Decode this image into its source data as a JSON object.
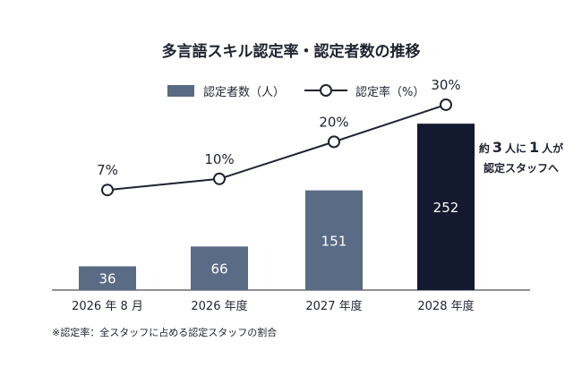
{
  "chart_data": {
    "type": "bar+line",
    "title": "多言語スキル認定率・認定者数の推移",
    "categories": [
      "2026 年 8 月",
      "2026 年度",
      "2027 年度",
      "2028 年度"
    ],
    "series": [
      {
        "name": "認定者数（人）",
        "type": "bar",
        "values": [
          36,
          66,
          151,
          252
        ],
        "colors": [
          "#5a6b85",
          "#5a6b85",
          "#5a6b85",
          "#13192e"
        ]
      },
      {
        "name": "認定率（%）",
        "type": "line",
        "values": [
          7,
          10,
          20,
          30
        ],
        "labels": [
          "7%",
          "10%",
          "20%",
          "30%"
        ],
        "color": "#1f2330"
      }
    ],
    "bar_ylim": [
      0,
      320
    ],
    "line_ylim": [
      -20,
      37
    ],
    "legend_position": "top-center",
    "grid": false,
    "callout": {
      "line1_parts": [
        "約",
        "3",
        "人に",
        "1",
        "人が"
      ],
      "line2": "認定スタッフへ"
    },
    "footnote": "※認定率：全スタッフに占める認定スタッフの割合"
  }
}
